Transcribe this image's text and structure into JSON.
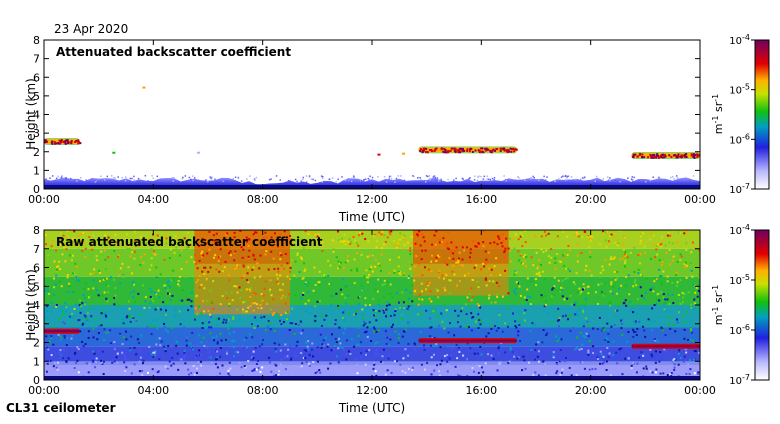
{
  "date": "23 Apr 2020",
  "instrument": "CL31 ceilometer",
  "chart_data": [
    {
      "type": "heatmap",
      "title": "Attenuated backscatter coefficient",
      "xlabel": "Time (UTC)",
      "ylabel": "Height (km)",
      "xlim": [
        0,
        24
      ],
      "ylim": [
        0,
        8
      ],
      "xticks": [
        "00:00",
        "04:00",
        "08:00",
        "12:00",
        "16:00",
        "20:00",
        "00:00"
      ],
      "yticks": [
        "0",
        "1",
        "2",
        "3",
        "4",
        "5",
        "6",
        "7",
        "8"
      ],
      "colorbar": {
        "scale": "log",
        "range": [
          1e-07,
          0.0001
        ],
        "ticks": [
          {
            "base": "10",
            "exp": "-7"
          },
          {
            "base": "10",
            "exp": "-6"
          },
          {
            "base": "10",
            "exp": "-5"
          },
          {
            "base": "10",
            "exp": "-4"
          }
        ],
        "units": {
          "base1": "m",
          "exp1": "-1",
          "base2": " sr",
          "exp2": "-1"
        }
      },
      "features": [
        {
          "name": "boundary layer",
          "t_start": 0,
          "t_end": 24,
          "h_top": 0.45
        },
        {
          "name": "cloud layer",
          "t_start": 0,
          "t_end": 1.3,
          "h": 2.55
        },
        {
          "name": "cloud layer",
          "t_start": 13.7,
          "t_end": 17.3,
          "h": 2.1
        },
        {
          "name": "cloud layer",
          "t_start": 21.5,
          "t_end": 24,
          "h": 1.8
        }
      ]
    },
    {
      "type": "heatmap",
      "title": "Raw attenuated backscatter coefficient",
      "xlabel": "Time (UTC)",
      "ylabel": "Height (km)",
      "xlim": [
        0,
        24
      ],
      "ylim": [
        0,
        8
      ],
      "xticks": [
        "00:00",
        "04:00",
        "08:00",
        "12:00",
        "16:00",
        "20:00",
        "00:00"
      ],
      "yticks": [
        "0",
        "1",
        "2",
        "3",
        "4",
        "5",
        "6",
        "7",
        "8"
      ],
      "colorbar": {
        "scale": "log",
        "range": [
          1e-07,
          0.0001
        ],
        "ticks": [
          {
            "base": "10",
            "exp": "-7"
          },
          {
            "base": "10",
            "exp": "-6"
          },
          {
            "base": "10",
            "exp": "-5"
          },
          {
            "base": "10",
            "exp": "-4"
          }
        ],
        "units": {
          "base1": "m",
          "exp1": "-1",
          "base2": " sr",
          "exp2": "-1"
        }
      },
      "features": [
        {
          "name": "noisy background",
          "t_start": 0,
          "t_end": 24,
          "h_top": 8
        },
        {
          "name": "enhanced noise (daylight)",
          "t_start": 5.5,
          "t_end": 9
        },
        {
          "name": "enhanced noise",
          "t_start": 13.5,
          "t_end": 17
        },
        {
          "name": "cloud layer",
          "t_start": 0,
          "t_end": 1.3,
          "h": 2.6
        },
        {
          "name": "cloud layer",
          "t_start": 13.7,
          "t_end": 17.3,
          "h": 2.1
        },
        {
          "name": "cloud layer",
          "t_start": 21.5,
          "t_end": 24,
          "h": 1.8
        }
      ]
    }
  ]
}
